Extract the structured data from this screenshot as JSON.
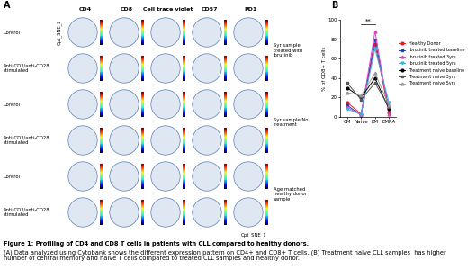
{
  "panel_a": {
    "label": "A",
    "columns": [
      "CD4",
      "CD8",
      "Cell trace violet",
      "CD57",
      "PD1"
    ],
    "rows": [
      "Control",
      "Anti-CD3/anti-CD28 stimulated",
      "Control",
      "Anti-CD3/anti-CD28 stimulated",
      "Control",
      "Anti-CD3/anti-CD28 stimulated"
    ],
    "groups": [
      "Syr sample treated with Ibrutinib",
      "Syr sample No treatment",
      "Age matched healthy donor sample"
    ],
    "y_label": "Opt_SNE_2",
    "x_label": "Opt_SNE_1"
  },
  "chart_data": {
    "type": "line",
    "panel_label": "B",
    "y_label": "% of CD8+ T cells",
    "categories": [
      "CM",
      "Naive",
      "EM",
      "EMRA"
    ],
    "ylim": [
      0,
      100
    ],
    "yticks": [
      0,
      20,
      40,
      60,
      80,
      100
    ],
    "legend": "center left",
    "annotations": [
      {
        "text": "**",
        "between": [
          "Naive",
          "EM"
        ]
      }
    ],
    "series": [
      {
        "name": "Healthy Donor",
        "color": "#e41a1c",
        "marker": "o",
        "values": [
          15,
          3,
          75,
          5
        ]
      },
      {
        "name": "Ibrutinib treated baseline",
        "color": "#1f3fbf",
        "marker": "s",
        "values": [
          12,
          2,
          80,
          8
        ]
      },
      {
        "name": "Ibrutinib treated 3yrs",
        "color": "#e040c0",
        "marker": "^",
        "values": [
          10,
          2,
          88,
          3
        ]
      },
      {
        "name": "Ibrutinib treated 5yrs",
        "color": "#40b0e0",
        "marker": "v",
        "values": [
          8,
          3,
          70,
          15
        ]
      },
      {
        "name": "Treatment naive baseline",
        "color": "#000000",
        "marker": "o",
        "values": [
          30,
          20,
          40,
          8
        ]
      },
      {
        "name": "Treatment naive 3yrs",
        "color": "#555555",
        "marker": "s",
        "values": [
          35,
          18,
          35,
          10
        ]
      },
      {
        "name": "Treatment naive 5yrs",
        "color": "#999999",
        "marker": "^",
        "values": [
          25,
          22,
          45,
          12
        ]
      }
    ]
  },
  "caption": {
    "title": "Figure 1: Profiling of CD4 and CD8 T cells in patients with CLL compared to healthy donors.",
    "text": "(A) Data analyzed using Cytobank shows the different expression pattern on CD4+ and CD8+ T cells. (B) Treatment naive CLL samples  has higher number of central memory and naive T cells compared to treated CLL samples and healthy donor."
  }
}
